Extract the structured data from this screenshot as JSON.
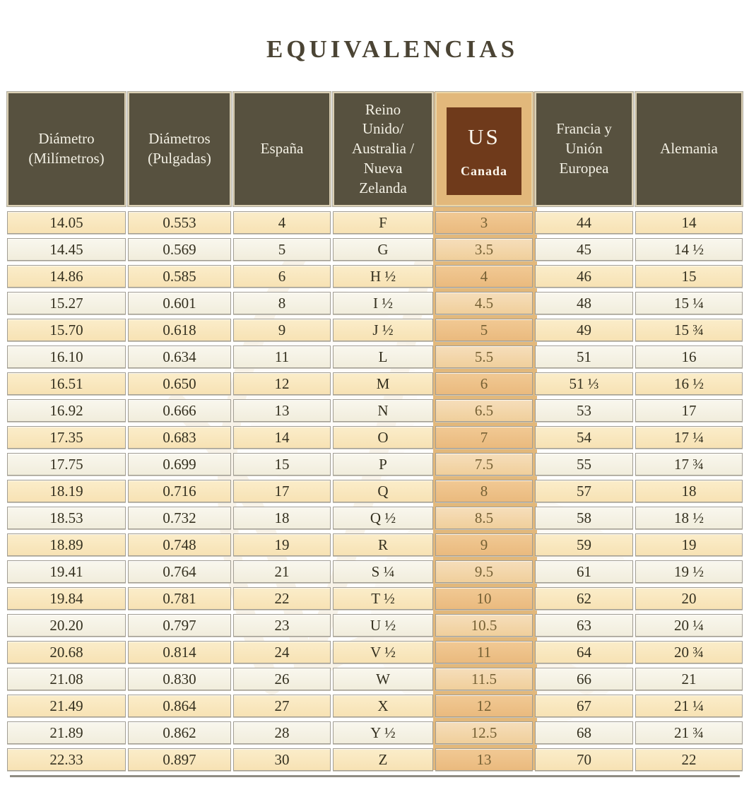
{
  "title": "EQUIVALENCIAS",
  "chart_data": {
    "type": "table",
    "title": "EQUIVALENCIAS",
    "columns": [
      "Diámetro (Milímetros)",
      "Diámetros (Pulgadas)",
      "España",
      "Reino Unido/ Australia / Nueva Zelanda",
      "US Canada",
      "Francia y Unión Europea",
      "Alemania"
    ],
    "rows": [
      [
        "14.05",
        "0.553",
        "4",
        "F",
        "3",
        "44",
        "14"
      ],
      [
        "14.45",
        "0.569",
        "5",
        "G",
        "3.5",
        "45",
        "14 ½"
      ],
      [
        "14.86",
        "0.585",
        "6",
        "H ½",
        "4",
        "46",
        "15"
      ],
      [
        "15.27",
        "0.601",
        "8",
        "I ½",
        "4.5",
        "48",
        "15 ¼"
      ],
      [
        "15.70",
        "0.618",
        "9",
        "J ½",
        "5",
        "49",
        "15 ¾"
      ],
      [
        "16.10",
        "0.634",
        "11",
        "L",
        "5.5",
        "51",
        "16"
      ],
      [
        "16.51",
        "0.650",
        "12",
        "M",
        "6",
        "51 ⅓",
        "16 ½"
      ],
      [
        "16.92",
        "0.666",
        "13",
        "N",
        "6.5",
        "53",
        "17"
      ],
      [
        "17.35",
        "0.683",
        "14",
        "O",
        "7",
        "54",
        "17 ¼"
      ],
      [
        "17.75",
        "0.699",
        "15",
        "P",
        "7.5",
        "55",
        "17 ¾"
      ],
      [
        "18.19",
        "0.716",
        "17",
        "Q",
        "8",
        "57",
        "18"
      ],
      [
        "18.53",
        "0.732",
        "18",
        "Q ½",
        "8.5",
        "58",
        "18 ½"
      ],
      [
        "18.89",
        "0.748",
        "19",
        "R",
        "9",
        "59",
        "19"
      ],
      [
        "19.41",
        "0.764",
        "21",
        "S ¼",
        "9.5",
        "61",
        "19 ½"
      ],
      [
        "19.84",
        "0.781",
        "22",
        "T ½",
        "10",
        "62",
        "20"
      ],
      [
        "20.20",
        "0.797",
        "23",
        "U ½",
        "10.5",
        "63",
        "20 ¼"
      ],
      [
        "20.68",
        "0.814",
        "24",
        "V ½",
        "11",
        "64",
        "20 ¾"
      ],
      [
        "21.08",
        "0.830",
        "26",
        "W",
        "11.5",
        "66",
        "21"
      ],
      [
        "21.49",
        "0.864",
        "27",
        "X",
        "12",
        "67",
        "21 ¼"
      ],
      [
        "21.89",
        "0.862",
        "28",
        "Y ½",
        "12.5",
        "68",
        "21 ¾"
      ],
      [
        "22.33",
        "0.897",
        "30",
        "Z",
        "13",
        "70",
        "22"
      ]
    ]
  },
  "header_display": {
    "col0": "Diámetro\n(Milímetros)",
    "col1": "Diámetros\n(Pulgadas)",
    "col2": "España",
    "col3": "Reino\nUnido/\nAustralia /\nNueva\nZelanda",
    "col4_us": "US",
    "col4_canada": "Canada",
    "col5": "Francia y\nUnión\nEuropea",
    "col6": "Alemania"
  },
  "colors": {
    "title": "#4b4434",
    "header_bg": "#57513f",
    "header_text": "#f3f0e4",
    "us_box_bg": "#6f3a1b",
    "us_strip": "#e2b87b",
    "row_odd": "#f9e7c1",
    "row_even": "#f6f3e6",
    "us_row_odd": "#eec189",
    "us_row_even": "#f4d8a9"
  }
}
